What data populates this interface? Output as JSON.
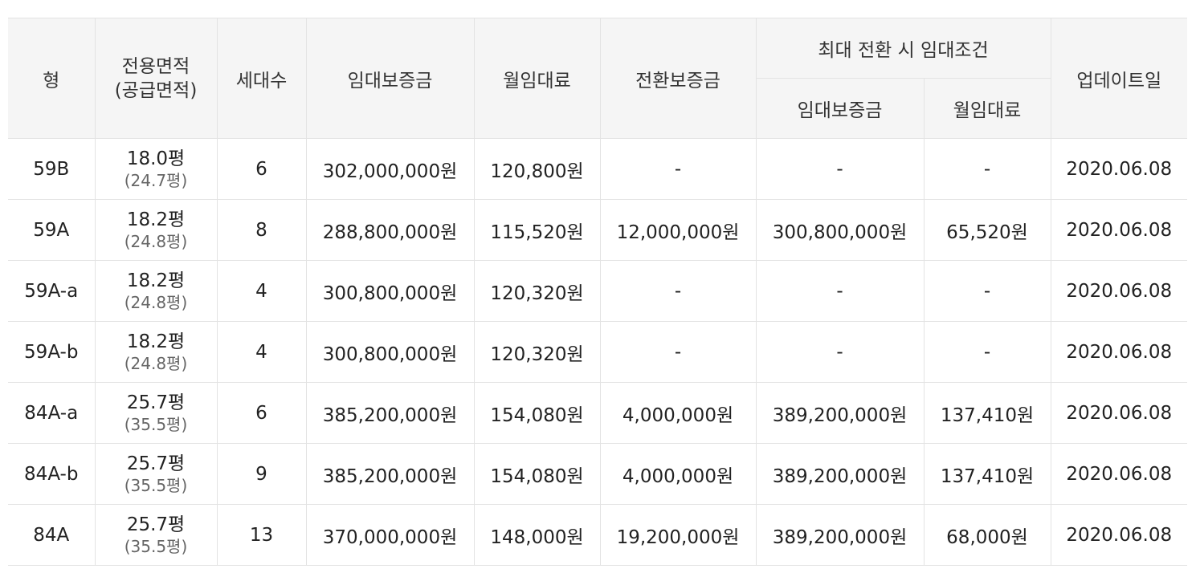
{
  "headers": {
    "type": "형",
    "area_line1": "전용면적",
    "area_line2": "(공급면적)",
    "households": "세대수",
    "deposit": "임대보증금",
    "monthly_rent": "월임대료",
    "conversion_deposit": "전환보증금",
    "max_conversion": "최대 전환 시 임대조건",
    "max_deposit": "임대보증금",
    "max_monthly_rent": "월임대료",
    "update_date": "업데이트일"
  },
  "rows": [
    {
      "type": "59B",
      "area": "18.0평",
      "supply_area": "(24.7평)",
      "households": "6",
      "deposit": "302,000,000원",
      "monthly_rent": "120,800원",
      "conversion_deposit": "-",
      "max_deposit": "-",
      "max_monthly_rent": "-",
      "update_date": "2020.06.08"
    },
    {
      "type": "59A",
      "area": "18.2평",
      "supply_area": "(24.8평)",
      "households": "8",
      "deposit": "288,800,000원",
      "monthly_rent": "115,520원",
      "conversion_deposit": "12,000,000원",
      "max_deposit": "300,800,000원",
      "max_monthly_rent": "65,520원",
      "update_date": "2020.06.08"
    },
    {
      "type": "59A-a",
      "area": "18.2평",
      "supply_area": "(24.8평)",
      "households": "4",
      "deposit": "300,800,000원",
      "monthly_rent": "120,320원",
      "conversion_deposit": "-",
      "max_deposit": "-",
      "max_monthly_rent": "-",
      "update_date": "2020.06.08"
    },
    {
      "type": "59A-b",
      "area": "18.2평",
      "supply_area": "(24.8평)",
      "households": "4",
      "deposit": "300,800,000원",
      "monthly_rent": "120,320원",
      "conversion_deposit": "-",
      "max_deposit": "-",
      "max_monthly_rent": "-",
      "update_date": "2020.06.08"
    },
    {
      "type": "84A-a",
      "area": "25.7평",
      "supply_area": "(35.5평)",
      "households": "6",
      "deposit": "385,200,000원",
      "monthly_rent": "154,080원",
      "conversion_deposit": "4,000,000원",
      "max_deposit": "389,200,000원",
      "max_monthly_rent": "137,410원",
      "update_date": "2020.06.08"
    },
    {
      "type": "84A-b",
      "area": "25.7평",
      "supply_area": "(35.5평)",
      "households": "9",
      "deposit": "385,200,000원",
      "monthly_rent": "154,080원",
      "conversion_deposit": "4,000,000원",
      "max_deposit": "389,200,000원",
      "max_monthly_rent": "137,410원",
      "update_date": "2020.06.08"
    },
    {
      "type": "84A",
      "area": "25.7평",
      "supply_area": "(35.5평)",
      "households": "13",
      "deposit": "370,000,000원",
      "monthly_rent": "148,000원",
      "conversion_deposit": "19,200,000원",
      "max_deposit": "389,200,000원",
      "max_monthly_rent": "68,000원",
      "update_date": "2020.06.08"
    }
  ],
  "colors": {
    "header_background": "#f5f5f5",
    "border": "#e3e3e3",
    "text": "#222222",
    "secondary_text": "#666666"
  }
}
